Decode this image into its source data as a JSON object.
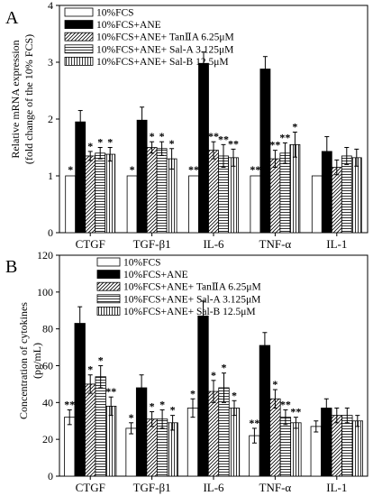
{
  "chart_data": [
    {
      "type": "bar",
      "panel_label": "A",
      "ylabel": "Relative mRNA expression",
      "ylabel2": "(fold change of the 10% FCS)",
      "categories": [
        "CTGF",
        "TGF-β1",
        "IL-6",
        "TNF-α",
        "IL-1"
      ],
      "ylim": [
        0,
        4
      ],
      "yticks": [
        "0",
        "1",
        "2",
        "3",
        "4"
      ],
      "legend_position": "top-left",
      "series": [
        {
          "name": "10%FCS",
          "pattern": "white",
          "values": [
            1.0,
            1.0,
            1.0,
            1.0,
            1.0
          ],
          "errors": [
            0,
            0,
            0,
            0,
            0
          ],
          "sig": [
            "",
            "",
            "",
            "",
            ""
          ]
        },
        {
          "name": "10%FCS+ANE",
          "pattern": "black",
          "values": [
            1.95,
            1.98,
            2.98,
            2.88,
            1.43
          ],
          "errors": [
            0.2,
            0.23,
            0.2,
            0.22,
            0.26
          ],
          "sig": [
            "",
            "",
            "",
            "",
            ""
          ]
        },
        {
          "name": "10%FCS+ANE+ TanⅡA 6.25μM",
          "pattern": "diag",
          "values": [
            1.35,
            1.5,
            1.45,
            1.3,
            1.15
          ],
          "errors": [
            0.08,
            0.1,
            0.15,
            0.15,
            0.13
          ],
          "sig": [
            "*",
            "*",
            "**",
            "**",
            ""
          ]
        },
        {
          "name": "10%FCS+ANE+ Sal-A 3.125μM",
          "pattern": "horiz",
          "values": [
            1.4,
            1.48,
            1.35,
            1.4,
            1.35
          ],
          "errors": [
            0.1,
            0.12,
            0.2,
            0.18,
            0.15
          ],
          "sig": [
            "*",
            "*",
            "**",
            "**",
            ""
          ]
        },
        {
          "name": "10%FCS+ANE+ Sal-B 12.5μM",
          "pattern": "vert",
          "values": [
            1.38,
            1.3,
            1.32,
            1.55,
            1.32
          ],
          "errors": [
            0.12,
            0.18,
            0.15,
            0.22,
            0.15
          ],
          "sig": [
            "*",
            "*",
            "**",
            "*",
            ""
          ]
        }
      ],
      "sig_control": [
        "*",
        "*",
        "**",
        "**",
        ""
      ]
    },
    {
      "type": "bar",
      "panel_label": "B",
      "ylabel": "Concentration of cytokines",
      "ylabel2": "(pg/mL)",
      "categories": [
        "CTGF",
        "TGF-β1",
        "IL-6",
        "TNF-α",
        "IL-1"
      ],
      "ylim": [
        0,
        120
      ],
      "yticks": [
        "0",
        "20",
        "40",
        "60",
        "80",
        "100",
        "120"
      ],
      "legend_position": "top-center",
      "series": [
        {
          "name": "10%FCS",
          "pattern": "white",
          "values": [
            32,
            26,
            37,
            22,
            27
          ],
          "errors": [
            4,
            3,
            5,
            4,
            3
          ],
          "sig": [
            "**",
            "*",
            "*",
            "**",
            ""
          ]
        },
        {
          "name": "10%FCS+ANE",
          "pattern": "black",
          "values": [
            83,
            48,
            87,
            71,
            37
          ],
          "errors": [
            9,
            7,
            8,
            7,
            5
          ],
          "sig": [
            "",
            "",
            "",
            "",
            ""
          ]
        },
        {
          "name": "10%FCS+ANE+ TanⅡA 6.25μM",
          "pattern": "diag",
          "values": [
            50,
            31,
            46,
            42,
            33
          ],
          "errors": [
            5,
            4,
            6,
            5,
            4
          ],
          "sig": [
            "*",
            "*",
            "*",
            "*",
            ""
          ]
        },
        {
          "name": "10%FCS+ANE+ Sal-A 3.125μM",
          "pattern": "horiz",
          "values": [
            54,
            31,
            48,
            32,
            33
          ],
          "errors": [
            6,
            5,
            8,
            4,
            4
          ],
          "sig": [
            "*",
            "*",
            "*",
            "**",
            ""
          ]
        },
        {
          "name": "10%FCS+ANE+ Sal-B 12.5μM",
          "pattern": "vert",
          "values": [
            38,
            29,
            37,
            29,
            30
          ],
          "errors": [
            5,
            4,
            4,
            3,
            3
          ],
          "sig": [
            "**",
            "*",
            "*",
            "**",
            ""
          ]
        }
      ]
    }
  ]
}
